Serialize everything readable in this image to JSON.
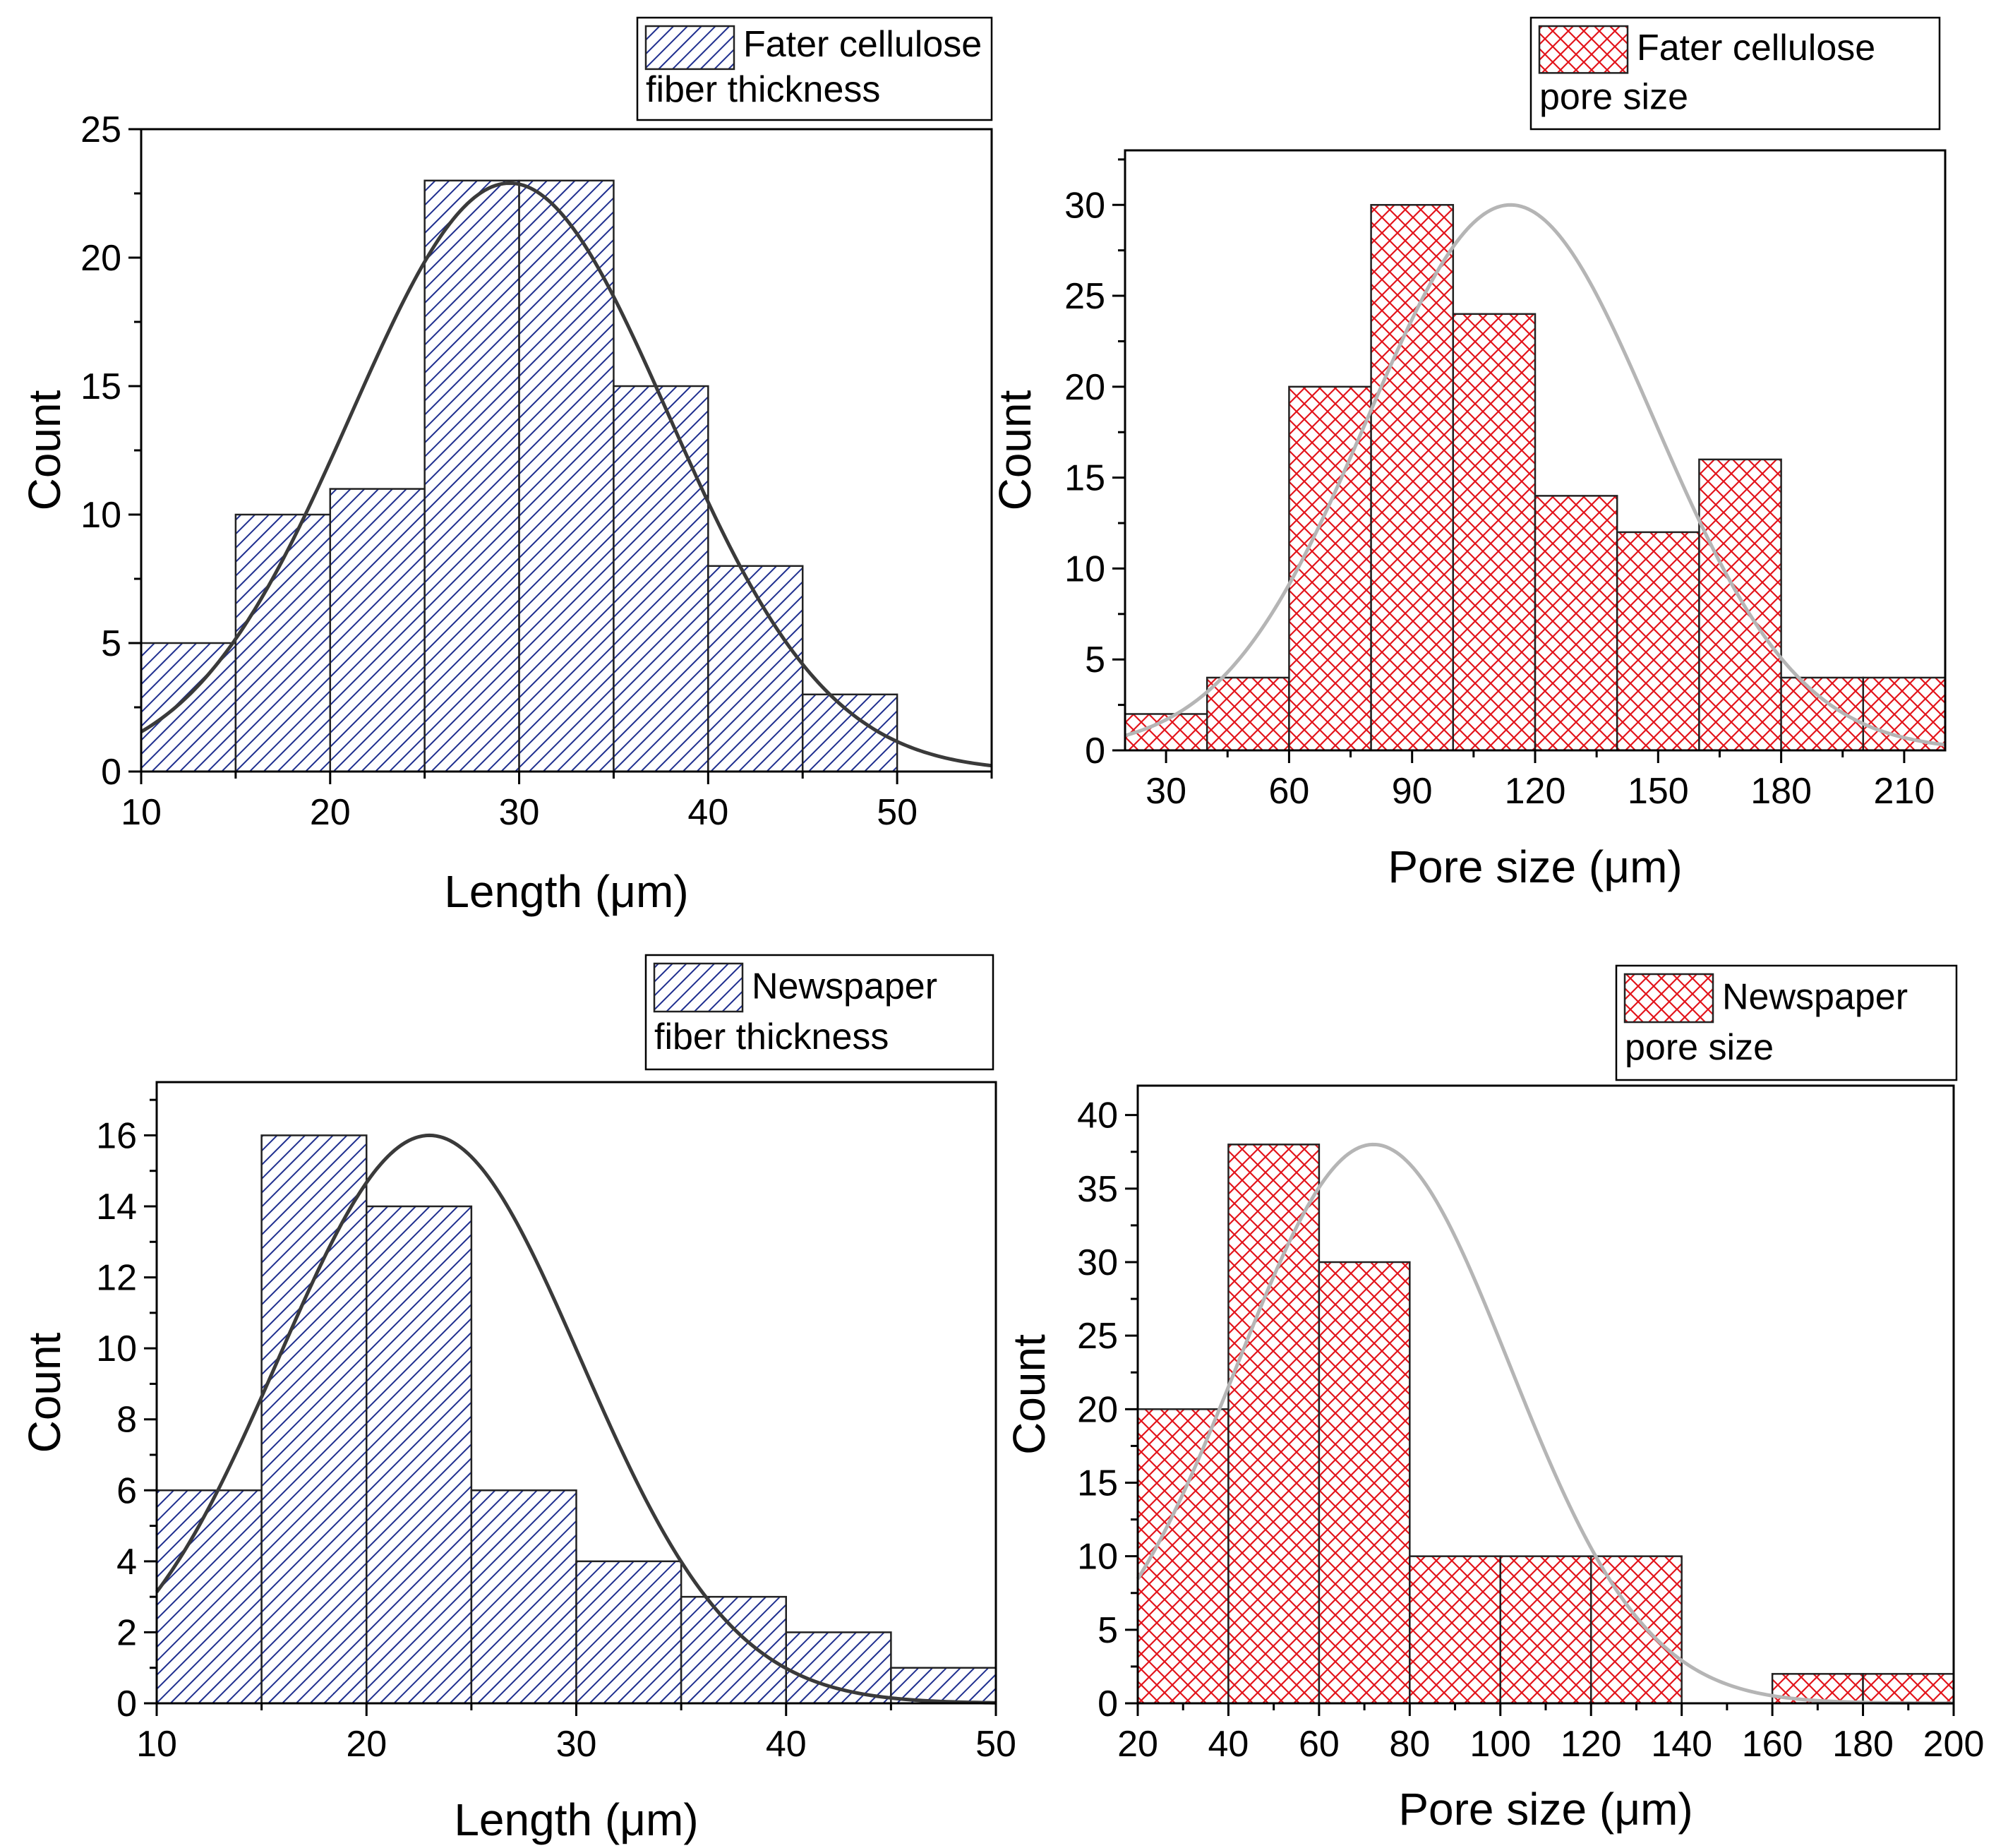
{
  "chart_data": [
    {
      "type": "bar",
      "id": "fater-thickness",
      "bins": [
        [
          10,
          15
        ],
        [
          15,
          20
        ],
        [
          20,
          25
        ],
        [
          25,
          30
        ],
        [
          30,
          35
        ],
        [
          35,
          40
        ],
        [
          40,
          45
        ],
        [
          45,
          50
        ]
      ],
      "values": [
        5,
        10,
        11,
        23,
        23,
        15,
        8,
        3
      ],
      "fit": {
        "kind": "gaussian",
        "peak": 22.9,
        "mean": 29.5,
        "sigma": 8.4
      },
      "xlabel": "Length (μm)",
      "ylabel": "Count",
      "xlim": [
        10,
        55
      ],
      "ylim": [
        0,
        25
      ],
      "xticks": [
        "10",
        "20",
        "30",
        "40",
        "50"
      ],
      "xtick_values": [
        10,
        20,
        30,
        40,
        50
      ],
      "yticks": [
        "0",
        "5",
        "10",
        "15",
        "20",
        "25"
      ],
      "ytick_values": [
        0,
        5,
        10,
        15,
        20,
        25
      ],
      "legend": {
        "line1": "Fater cellulose",
        "line2": "fiber thickness",
        "placement": "top-right"
      },
      "fill": "blue-diagonal-hatch",
      "color": "#1f2f8f",
      "curve_color": "#3a3a3a"
    },
    {
      "type": "bar",
      "id": "fater-pore",
      "bins": [
        [
          20,
          40
        ],
        [
          40,
          60
        ],
        [
          60,
          80
        ],
        [
          80,
          100
        ],
        [
          100,
          120
        ],
        [
          120,
          140
        ],
        [
          140,
          160
        ],
        [
          160,
          180
        ],
        [
          180,
          200
        ],
        [
          200,
          220
        ]
      ],
      "values": [
        2,
        4,
        20,
        30,
        24,
        14,
        12,
        16,
        4,
        4
      ],
      "fit": {
        "kind": "gaussian",
        "peak": 30,
        "mean": 114,
        "sigma": 35
      },
      "xlabel": "Pore size (μm)",
      "ylabel": "Count",
      "xlim": [
        20,
        220
      ],
      "ylim": [
        0,
        33
      ],
      "xticks": [
        "30",
        "60",
        "90",
        "120",
        "150",
        "180",
        "210"
      ],
      "xtick_values": [
        30,
        60,
        90,
        120,
        150,
        180,
        210
      ],
      "yticks": [
        "0",
        "5",
        "10",
        "15",
        "20",
        "25",
        "30"
      ],
      "ytick_values": [
        0,
        5,
        10,
        15,
        20,
        25,
        30
      ],
      "legend": {
        "line1": "Fater cellulose",
        "line2": "pore size",
        "placement": "top-right"
      },
      "fill": "red-crosshatch",
      "color": "#e3141b",
      "curve_color": "#b5b5b5"
    },
    {
      "type": "bar",
      "id": "newspaper-thickness",
      "bins": [
        [
          10,
          15
        ],
        [
          15,
          20
        ],
        [
          20,
          25
        ],
        [
          25,
          30
        ],
        [
          30,
          35
        ],
        [
          35,
          40
        ],
        [
          40,
          45
        ],
        [
          45,
          50
        ]
      ],
      "values": [
        6,
        16,
        14,
        6,
        4,
        3,
        2,
        1
      ],
      "fit": {
        "kind": "gaussian",
        "peak": 16,
        "mean": 23,
        "sigma": 7.2
      },
      "xlabel": "Length (μm)",
      "ylabel": "Count",
      "xlim": [
        10,
        50
      ],
      "ylim": [
        0,
        17.5
      ],
      "xticks": [
        "10",
        "20",
        "30",
        "40",
        "50"
      ],
      "xtick_values": [
        10,
        20,
        30,
        40,
        50
      ],
      "yticks": [
        "0",
        "2",
        "4",
        "6",
        "8",
        "10",
        "12",
        "14",
        "16"
      ],
      "ytick_values": [
        0,
        2,
        4,
        6,
        8,
        10,
        12,
        14,
        16
      ],
      "legend": {
        "line1": "Newspaper",
        "line2": "fiber thickness",
        "placement": "top-right"
      },
      "fill": "blue-diagonal-hatch",
      "color": "#1f2f8f",
      "curve_color": "#3a3a3a"
    },
    {
      "type": "bar",
      "id": "newspaper-pore",
      "bins": [
        [
          20,
          40
        ],
        [
          40,
          60
        ],
        [
          60,
          80
        ],
        [
          80,
          100
        ],
        [
          100,
          120
        ],
        [
          120,
          140
        ],
        [
          140,
          160
        ],
        [
          160,
          180
        ],
        [
          180,
          200
        ]
      ],
      "values": [
        20,
        38,
        30,
        10,
        10,
        10,
        0,
        2,
        2
      ],
      "fit": {
        "kind": "gaussian",
        "peak": 38,
        "mean": 72,
        "sigma": 30
      },
      "xlabel": "Pore size (μm)",
      "ylabel": "Count",
      "xlim": [
        20,
        200
      ],
      "ylim": [
        0,
        42
      ],
      "xticks": [
        "20",
        "40",
        "60",
        "80",
        "100",
        "120",
        "140",
        "160",
        "180",
        "200"
      ],
      "xtick_values": [
        20,
        40,
        60,
        80,
        100,
        120,
        140,
        160,
        180,
        200
      ],
      "yticks": [
        "0",
        "5",
        "10",
        "15",
        "20",
        "25",
        "30",
        "35",
        "40"
      ],
      "ytick_values": [
        0,
        5,
        10,
        15,
        20,
        25,
        30,
        35,
        40
      ],
      "legend": {
        "line1": "Newspaper",
        "line2": "pore size",
        "placement": "top-right"
      },
      "fill": "red-crosshatch",
      "color": "#e3141b",
      "curve_color": "#b5b5b5"
    }
  ]
}
